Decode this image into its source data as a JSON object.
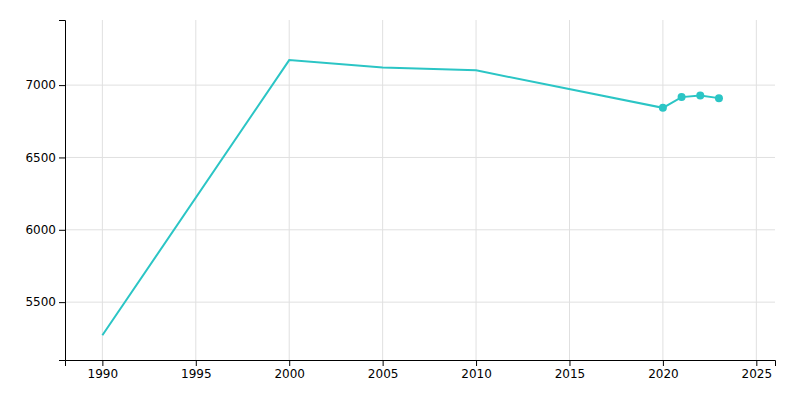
{
  "chart_data": {
    "type": "line",
    "x": [
      1990,
      2000,
      2005,
      2010,
      2020,
      2021,
      2022,
      2023
    ],
    "series": [
      {
        "type": "line",
        "color": "#2bc5c5",
        "values": [
          5271,
          7173,
          7121,
          7102,
          6843,
          6917,
          6928,
          6910
        ]
      },
      {
        "type": "scatter",
        "marker": "circle",
        "color": "#2bc5c5",
        "values": [
          null,
          null,
          null,
          null,
          6843,
          6917,
          6928,
          6910
        ]
      }
    ],
    "xlim": [
      1988,
      2026
    ],
    "ylim": [
      5100,
      7450
    ],
    "xticks": [
      1990,
      1995,
      2000,
      2005,
      2010,
      2015,
      2020,
      2025
    ],
    "yticks": [
      5500,
      6000,
      6500,
      7000
    ],
    "grid": true
  }
}
